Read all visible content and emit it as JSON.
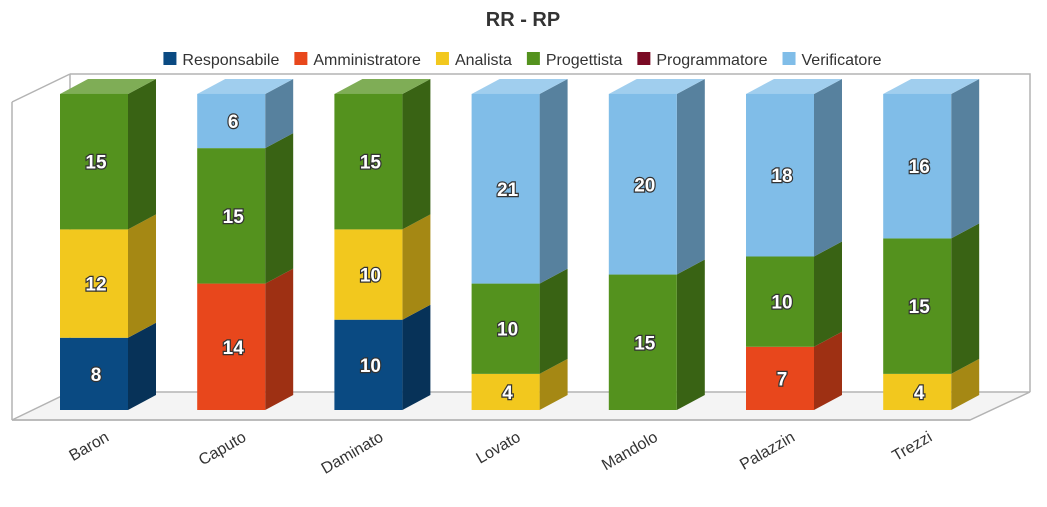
{
  "chart_data": {
    "type": "bar",
    "stacked": true,
    "style": "3d",
    "title": "RR - RP",
    "legend_position": "top",
    "grid": false,
    "categories": [
      "Baron",
      "Caputo",
      "Daminato",
      "Lovato",
      "Mandolo",
      "Palazzin",
      "Trezzi"
    ],
    "series": [
      {
        "name": "Responsabile",
        "color": "#0a4a82",
        "values": [
          8,
          0,
          10,
          0,
          0,
          0,
          0
        ]
      },
      {
        "name": "Amministratore",
        "color": "#e8471c",
        "values": [
          0,
          14,
          0,
          0,
          0,
          7,
          0
        ]
      },
      {
        "name": "Analista",
        "color": "#f2c81e",
        "values": [
          12,
          0,
          10,
          4,
          0,
          0,
          4
        ]
      },
      {
        "name": "Progettista",
        "color": "#54921e",
        "values": [
          15,
          15,
          15,
          10,
          15,
          10,
          15
        ]
      },
      {
        "name": "Programmatore",
        "color": "#7a0a24",
        "values": [
          0,
          0,
          0,
          0,
          0,
          0,
          0
        ]
      },
      {
        "name": "Verificatore",
        "color": "#80bde8",
        "values": [
          0,
          6,
          0,
          21,
          20,
          18,
          16
        ]
      }
    ],
    "ylim": [
      0,
      35
    ]
  }
}
